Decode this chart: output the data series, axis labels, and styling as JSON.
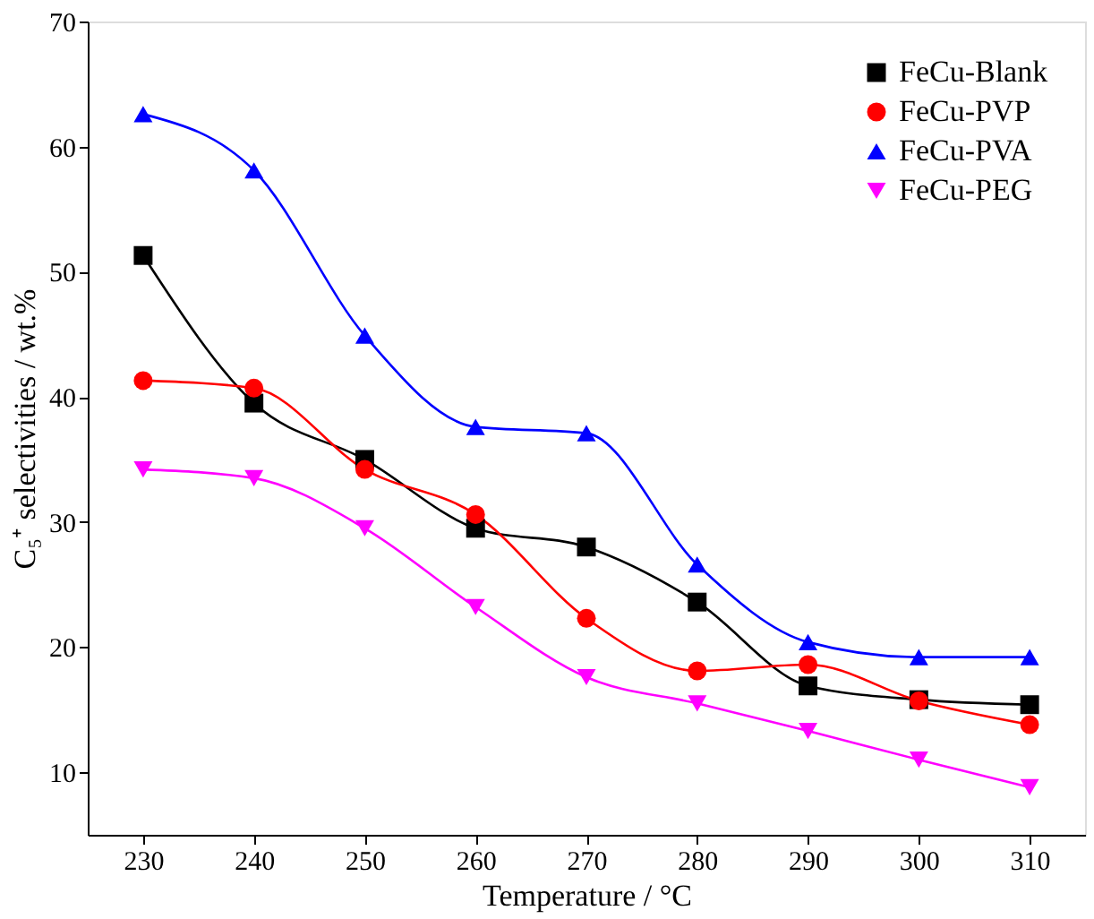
{
  "chart_data": {
    "type": "line",
    "xlabel": "Temperature / °C",
    "ylabel": "C₅⁺ selectivities / wt.%",
    "x": [
      230,
      240,
      250,
      260,
      270,
      280,
      290,
      300,
      310
    ],
    "xlim": [
      225,
      315
    ],
    "xticks": [
      230,
      240,
      250,
      260,
      270,
      280,
      290,
      300,
      310
    ],
    "ylim": [
      5,
      70
    ],
    "yticks": [
      10,
      20,
      30,
      40,
      50,
      60,
      70
    ],
    "grid": false,
    "legend": "top right",
    "line_style": "solid",
    "series": [
      {
        "name": "FeCu-Blank",
        "color": "#000000",
        "marker": "square",
        "values": [
          51.3,
          39.5,
          35.0,
          29.5,
          28.0,
          23.6,
          16.9,
          15.8,
          15.4
        ]
      },
      {
        "name": "FeCu-PVP",
        "color": "#ff0000",
        "marker": "circle",
        "values": [
          41.3,
          40.7,
          34.2,
          30.6,
          22.3,
          18.1,
          18.6,
          15.7,
          13.8
        ]
      },
      {
        "name": "FeCu-PVA",
        "color": "#0000ff",
        "marker": "triangle",
        "values": [
          62.6,
          58.1,
          44.9,
          37.6,
          37.1,
          26.6,
          20.4,
          19.2,
          19.2
        ]
      },
      {
        "name": "FeCu-PEG",
        "color": "#ff00ff",
        "marker": "triangle-down",
        "values": [
          34.2,
          33.5,
          29.5,
          23.2,
          17.6,
          15.5,
          13.3,
          11.0,
          8.8
        ]
      }
    ]
  }
}
